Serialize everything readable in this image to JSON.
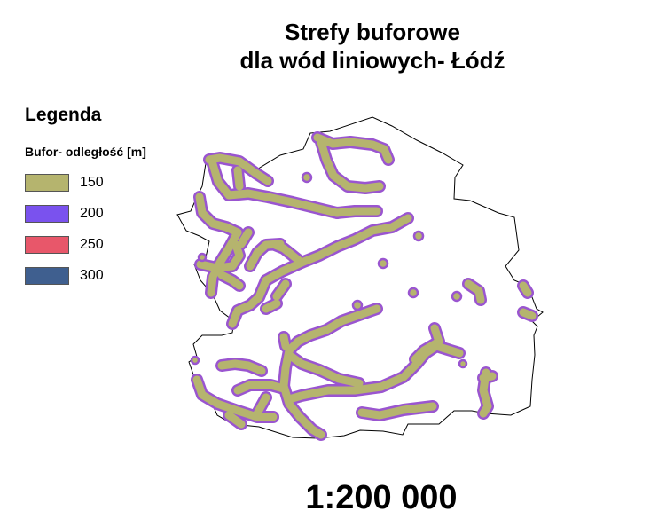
{
  "title_line1": "Strefy buforowe",
  "title_line2": "dla wód liniowych- Łódź",
  "legend": {
    "title": "Legenda",
    "subtitle": "Bufor- odległość [m]",
    "items": [
      {
        "label": "150",
        "color": "#b5b46e"
      },
      {
        "label": "200",
        "color": "#7a52ee"
      },
      {
        "label": "250",
        "color": "#e8576a"
      },
      {
        "label": "300",
        "color": "#3f5f8f"
      }
    ]
  },
  "scale": "1:200 000",
  "colors": {
    "buffer_fill": "#b5b46e",
    "buffer_edge": "#9a55d0",
    "boundary": "#000000"
  }
}
